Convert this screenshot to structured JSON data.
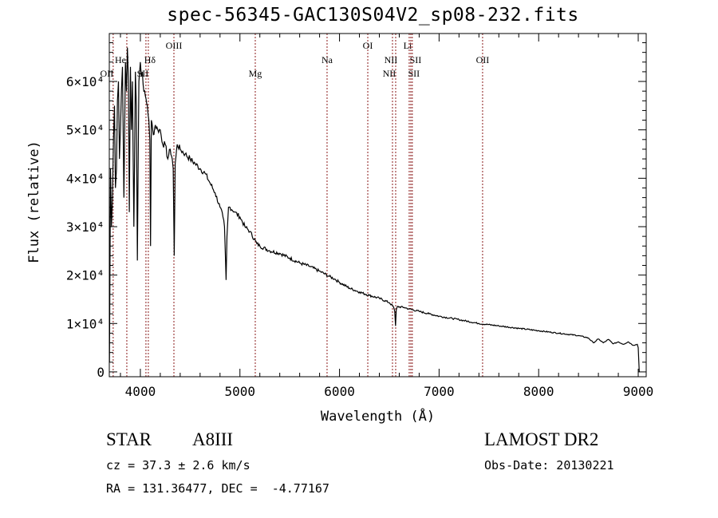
{
  "chart_data": {
    "type": "line",
    "title": "spec-56345-GAC130S04V2_sp08-232.fits",
    "xlabel": "Wavelength (Å)",
    "ylabel": "Flux (relative)",
    "xlim": [
      3688,
      9080
    ],
    "ylim": [
      -1000,
      69900
    ],
    "grid": false,
    "x_ticks": [
      4000,
      5000,
      6000,
      7000,
      8000,
      9000
    ],
    "x_tick_labels": [
      "4000",
      "5000",
      "6000",
      "7000",
      "8000",
      "9000"
    ],
    "y_ticks": [
      0,
      10000,
      20000,
      30000,
      40000,
      50000,
      60000
    ],
    "y_tick_labels": [
      "0",
      "1×10⁴",
      "2×10⁴",
      "3×10⁴",
      "4×10⁴",
      "5×10⁴",
      "6×10⁴"
    ],
    "series": [
      {
        "name": "spectrum",
        "color": "#000000",
        "x": [
          3690,
          3700,
          3710,
          3720,
          3730,
          3740,
          3750,
          3760,
          3770,
          3780,
          3790,
          3800,
          3810,
          3820,
          3835,
          3850,
          3860,
          3870,
          3880,
          3889,
          3900,
          3910,
          3920,
          3935,
          3950,
          3960,
          3970,
          3985,
          4000,
          4010,
          4020,
          4035,
          4050,
          4070,
          4085,
          4095,
          4102,
          4110,
          4130,
          4150,
          4175,
          4200,
          4225,
          4250,
          4275,
          4300,
          4320,
          4330,
          4340,
          4350,
          4370,
          4400,
          4450,
          4500,
          4550,
          4600,
          4650,
          4700,
          4750,
          4800,
          4830,
          4845,
          4861,
          4870,
          4885,
          4900,
          4950,
          5000,
          5050,
          5100,
          5170,
          5200,
          5300,
          5400,
          5500,
          5600,
          5700,
          5800,
          5890,
          5950,
          6000,
          6100,
          6200,
          6300,
          6400,
          6500,
          6540,
          6555,
          6563,
          6570,
          6580,
          6650,
          6700,
          6800,
          6900,
          7000,
          7200,
          7400,
          7600,
          7800,
          8000,
          8200,
          8400,
          8500,
          8550,
          8600,
          8650,
          8700,
          8750,
          8800,
          8850,
          8900,
          8950,
          8990,
          9000,
          9010
        ],
        "y": [
          2000,
          42000,
          30000,
          36000,
          48000,
          55000,
          38000,
          42000,
          56000,
          60000,
          44000,
          50000,
          58000,
          63000,
          36000,
          64000,
          58000,
          67000,
          60000,
          33000,
          63000,
          50000,
          60000,
          30000,
          62000,
          55000,
          23000,
          60000,
          64000,
          61000,
          62000,
          58000,
          57000,
          55000,
          52000,
          48000,
          26000,
          52000,
          49000,
          51000,
          50000,
          50000,
          47000,
          47000,
          44000,
          46000,
          44000,
          42000,
          24000,
          43000,
          47000,
          46000,
          45000,
          44000,
          43000,
          42000,
          41000,
          39000,
          37000,
          34000,
          32000,
          30000,
          19000,
          28000,
          34000,
          34000,
          33000,
          32000,
          30000,
          29000,
          26500,
          26000,
          25000,
          24500,
          23500,
          22500,
          21800,
          20800,
          19800,
          19200,
          18500,
          17300,
          16500,
          15800,
          15200,
          14300,
          13500,
          12500,
          9500,
          12800,
          13500,
          13300,
          13000,
          12500,
          12000,
          11500,
          10800,
          10000,
          9500,
          9000,
          8500,
          8000,
          7500,
          7000,
          6000,
          6800,
          6000,
          6700,
          5800,
          6200,
          5700,
          6200,
          5500,
          5700,
          5000,
          0
        ]
      }
    ],
    "line_markers": [
      {
        "label": "OII",
        "wavelength": 3727
      },
      {
        "label": "HeI",
        "wavelength": 3864
      },
      {
        "label": "SII",
        "wavelength": 4056
      },
      {
        "label": "Hδ",
        "wavelength": 4080
      },
      {
        "label": "OIII",
        "wavelength": 4337
      },
      {
        "label": "Mg",
        "wavelength": 5154
      },
      {
        "label": "Na",
        "wavelength": 5875
      },
      {
        "label": "OI",
        "wavelength": 6284
      },
      {
        "label": "NII",
        "wavelength": 6532
      },
      {
        "label": "NII",
        "wavelength": 6564
      },
      {
        "label": "Li",
        "wavelength": 6700
      },
      {
        "label": "SII",
        "wavelength": 6716
      },
      {
        "label": "SII",
        "wavelength": 6731
      },
      {
        "label": "OII",
        "wavelength": 7437
      }
    ],
    "marker_color": "#8b1a1a"
  },
  "info": {
    "object_type": "STAR",
    "subclass": "A8III",
    "survey": "LAMOST DR2",
    "cz": "cz = 37.3 ± 2.6 km/s",
    "obs_date": "Obs-Date: 20130221",
    "coords": "RA = 131.36477, DEC =  -4.77167"
  }
}
